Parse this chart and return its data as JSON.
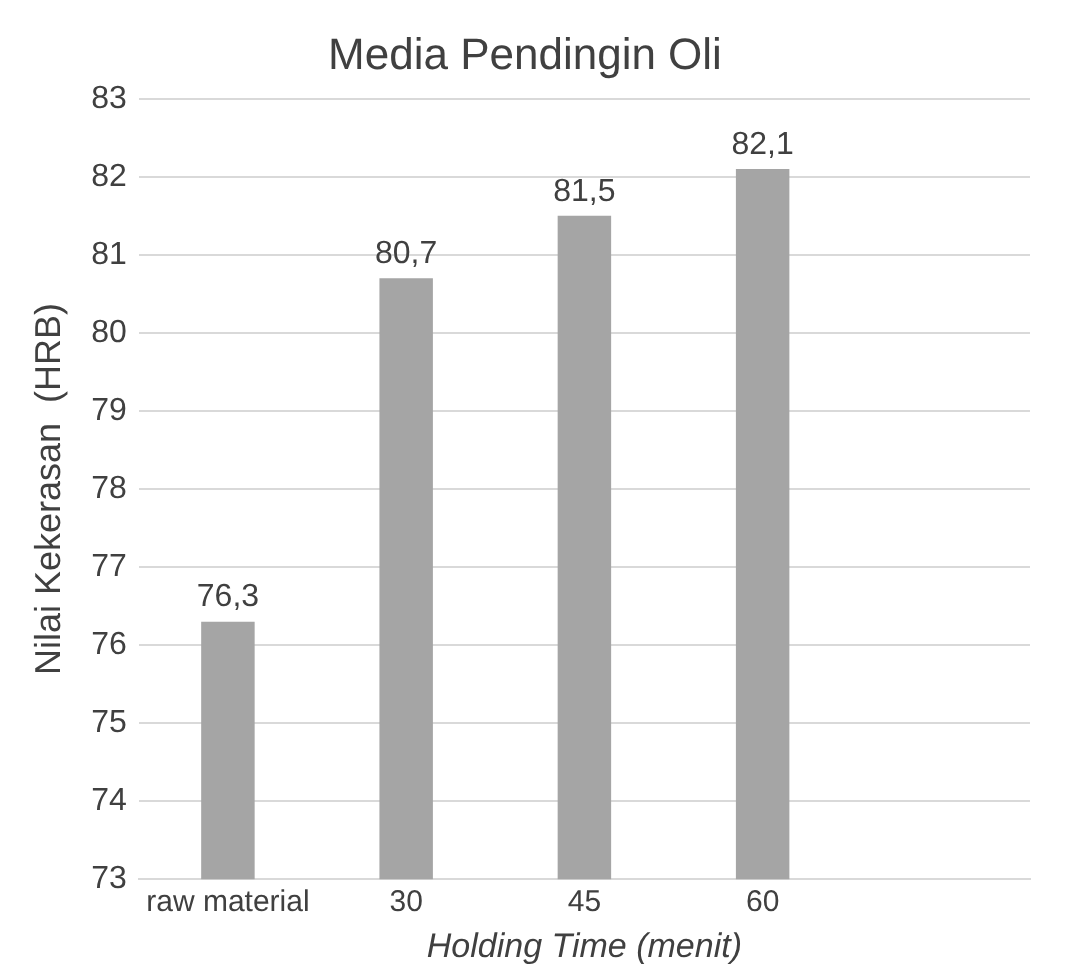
{
  "chart_data": {
    "type": "bar",
    "title": "Media Pendingin Oli",
    "xlabel": "Holding Time (menit)",
    "ylabel": "Nilai Kekerasan  (HRB)",
    "categories": [
      "raw material",
      "30",
      "45",
      "60",
      null
    ],
    "values": [
      76.3,
      80.7,
      81.5,
      82.1,
      null
    ],
    "value_labels": [
      "76,3",
      "80,7",
      "81,5",
      "82,1",
      null
    ],
    "color": "#a5a5a5",
    "ylim": [
      73,
      83
    ],
    "yticks": [
      73,
      74,
      75,
      76,
      77,
      78,
      79,
      80,
      81,
      82,
      83
    ],
    "grid": "y",
    "legend": false
  }
}
